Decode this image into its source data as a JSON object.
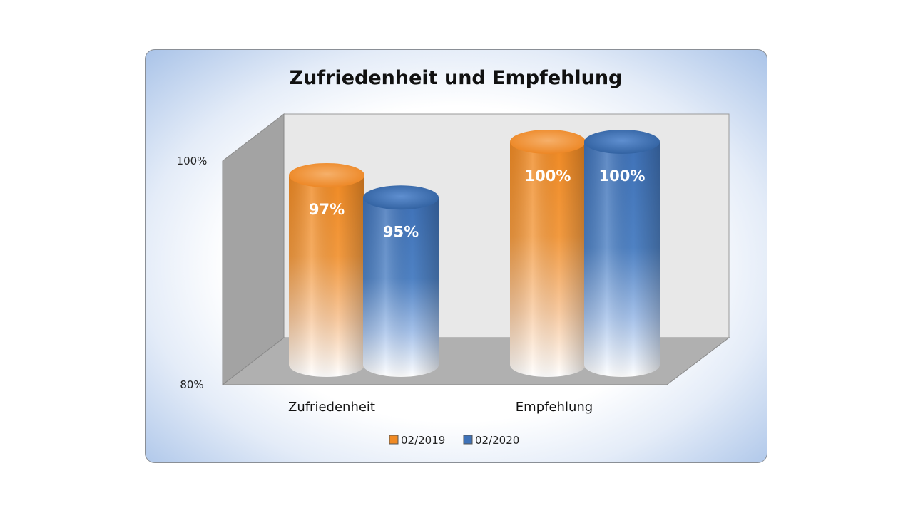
{
  "chart_data": {
    "type": "bar",
    "style": "3d-cylinder",
    "title": "Zufriedenheit und Empfehlung",
    "categories": [
      "Zufriedenheit",
      "Empfehlung"
    ],
    "series": [
      {
        "name": "02/2019",
        "values": [
          97,
          100
        ],
        "labels": [
          "97%",
          "100%"
        ],
        "color": "#f08a24"
      },
      {
        "name": "02/2020",
        "values": [
          95,
          100
        ],
        "labels": [
          "95%",
          "100%"
        ],
        "color": "#3f72b8"
      }
    ],
    "ylim": [
      80,
      100
    ],
    "yticks": [
      {
        "value": 80,
        "label": "80%"
      },
      {
        "value": 100,
        "label": "100%"
      }
    ],
    "legend": "bottom",
    "grid": false
  }
}
